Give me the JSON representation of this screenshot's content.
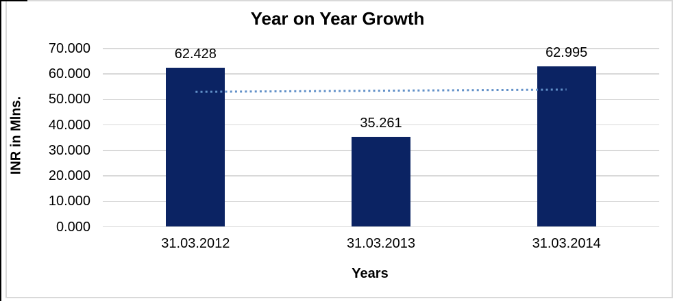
{
  "chart": {
    "title": "Year on Year Growth",
    "x_axis_title": "Years",
    "y_axis_title": "INR in Mlns."
  },
  "chart_data": {
    "type": "bar",
    "title": "Year on Year Growth",
    "xlabel": "Years",
    "ylabel": "INR in Mlns.",
    "categories": [
      "31.03.2012",
      "31.03.2013",
      "31.03.2014"
    ],
    "values": [
      62.428,
      35.261,
      62.995
    ],
    "value_labels": [
      "62.428",
      "35.261",
      "62.995"
    ],
    "ylim": [
      0,
      70
    ],
    "ytick_labels_top_down": [
      "70.000",
      "60.000",
      "50.000",
      "40.000",
      "30.000",
      "20.000",
      "10.000",
      "0.000"
    ],
    "ytick_values_top_down": [
      70,
      60,
      50,
      40,
      30,
      20,
      10,
      0
    ],
    "grid": "horizontal",
    "legend": "none",
    "trendline": {
      "type": "linear",
      "style": "dotted",
      "start_value": 53.0,
      "end_value": 53.9
    },
    "colors": {
      "bar": "#0b2363",
      "trendline": "#6190c8",
      "gridline": "#d9d9d9",
      "frame": "#d9d9d9",
      "text": "#000000"
    }
  }
}
